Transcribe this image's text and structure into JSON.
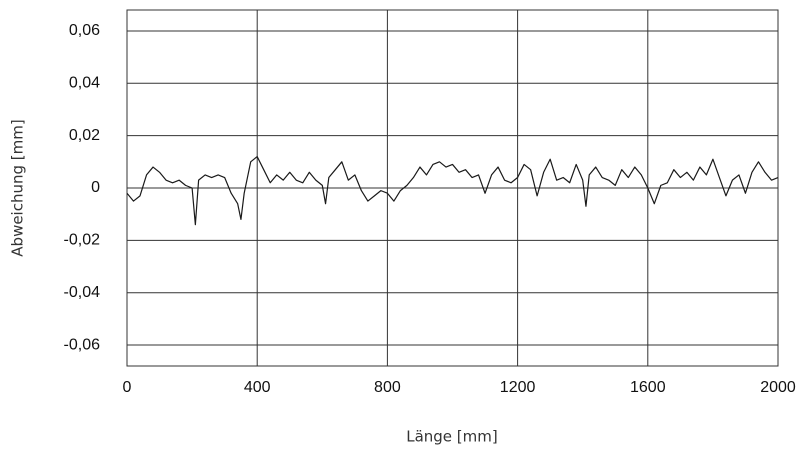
{
  "chart_data": {
    "type": "line",
    "x_label": "Länge [mm]",
    "y_label": "Abweichung [mm]",
    "x": [
      0,
      20,
      40,
      60,
      80,
      100,
      120,
      140,
      160,
      180,
      200,
      210,
      220,
      240,
      260,
      280,
      300,
      320,
      340,
      350,
      360,
      380,
      400,
      420,
      440,
      460,
      480,
      500,
      520,
      540,
      560,
      580,
      600,
      610,
      620,
      640,
      660,
      680,
      700,
      720,
      740,
      760,
      780,
      800,
      820,
      840,
      860,
      880,
      900,
      920,
      940,
      960,
      980,
      1000,
      1020,
      1040,
      1060,
      1080,
      1100,
      1120,
      1140,
      1160,
      1180,
      1200,
      1220,
      1240,
      1260,
      1280,
      1300,
      1320,
      1340,
      1360,
      1380,
      1400,
      1410,
      1420,
      1440,
      1460,
      1480,
      1500,
      1520,
      1540,
      1560,
      1580,
      1600,
      1620,
      1640,
      1660,
      1680,
      1700,
      1720,
      1740,
      1760,
      1780,
      1800,
      1820,
      1840,
      1860,
      1880,
      1900,
      1920,
      1940,
      1960,
      1980,
      2000
    ],
    "values": [
      -0.002,
      -0.005,
      -0.003,
      0.005,
      0.008,
      0.006,
      0.003,
      0.002,
      0.003,
      0.001,
      0.0,
      -0.014,
      0.003,
      0.005,
      0.004,
      0.005,
      0.004,
      -0.002,
      -0.006,
      -0.012,
      -0.002,
      0.01,
      0.012,
      0.007,
      0.002,
      0.005,
      0.003,
      0.006,
      0.003,
      0.002,
      0.006,
      0.003,
      0.001,
      -0.006,
      0.004,
      0.007,
      0.01,
      0.003,
      0.005,
      -0.001,
      -0.005,
      -0.003,
      -0.001,
      -0.002,
      -0.005,
      -0.001,
      0.001,
      0.004,
      0.008,
      0.005,
      0.009,
      0.01,
      0.008,
      0.009,
      0.006,
      0.007,
      0.004,
      0.005,
      -0.002,
      0.005,
      0.008,
      0.003,
      0.002,
      0.004,
      0.009,
      0.007,
      -0.003,
      0.006,
      0.011,
      0.003,
      0.004,
      0.002,
      0.009,
      0.003,
      -0.007,
      0.005,
      0.008,
      0.004,
      0.003,
      0.001,
      0.007,
      0.004,
      0.008,
      0.005,
      0.0,
      -0.006,
      0.001,
      0.002,
      0.007,
      0.004,
      0.006,
      0.003,
      0.008,
      0.005,
      0.011,
      0.004,
      -0.003,
      0.003,
      0.005,
      -0.002,
      0.006,
      0.01,
      0.006,
      0.003,
      0.004
    ],
    "color": "#1a1a1a",
    "xlim": [
      0,
      2000
    ],
    "xticks": [
      0,
      400,
      800,
      1200,
      1600,
      2000
    ],
    "ylim": [
      -0.068,
      0.068
    ],
    "yticks": [
      {
        "value": -0.06,
        "label": "-0,06"
      },
      {
        "value": -0.04,
        "label": "-0,04"
      },
      {
        "value": -0.02,
        "label": "-0,02"
      },
      0,
      {
        "value": 0.02,
        "label": "0,02"
      },
      {
        "value": 0.04,
        "label": "0,04"
      },
      {
        "value": 0.06,
        "label": "0,06"
      }
    ],
    "grid": true
  }
}
